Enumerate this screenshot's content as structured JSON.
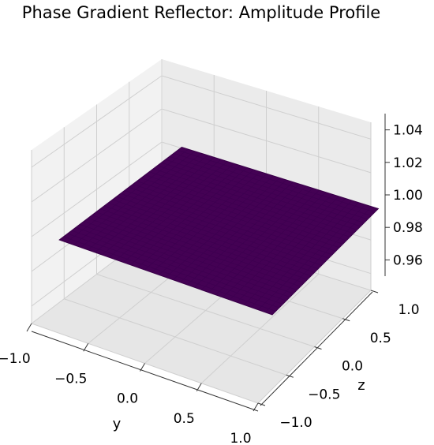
{
  "chart_data": {
    "type": "surface3d",
    "title": "Phase Gradient Reflector: Amplitude Profile",
    "xlabel": "y",
    "ylabel": "z",
    "zlabel": "",
    "y_ticks": [
      "−1.0",
      "−0.5",
      "0.0",
      "0.5",
      "1.0"
    ],
    "z_ticks": [
      "−1.0",
      "−0.5",
      "0.0",
      "0.5",
      "1.0"
    ],
    "amp_ticks": [
      "0.96",
      "0.98",
      "1.00",
      "1.02",
      "1.04"
    ],
    "y_range": [
      -1.0,
      1.0
    ],
    "z_range": [
      -1.0,
      1.0
    ],
    "amplitude_range": [
      0.95,
      1.05
    ],
    "surface": {
      "value": 1.0,
      "description_color": "#440154"
    },
    "grid": true,
    "pane_color": "#f2f2f2",
    "grid_color": "#cfcfcf"
  }
}
